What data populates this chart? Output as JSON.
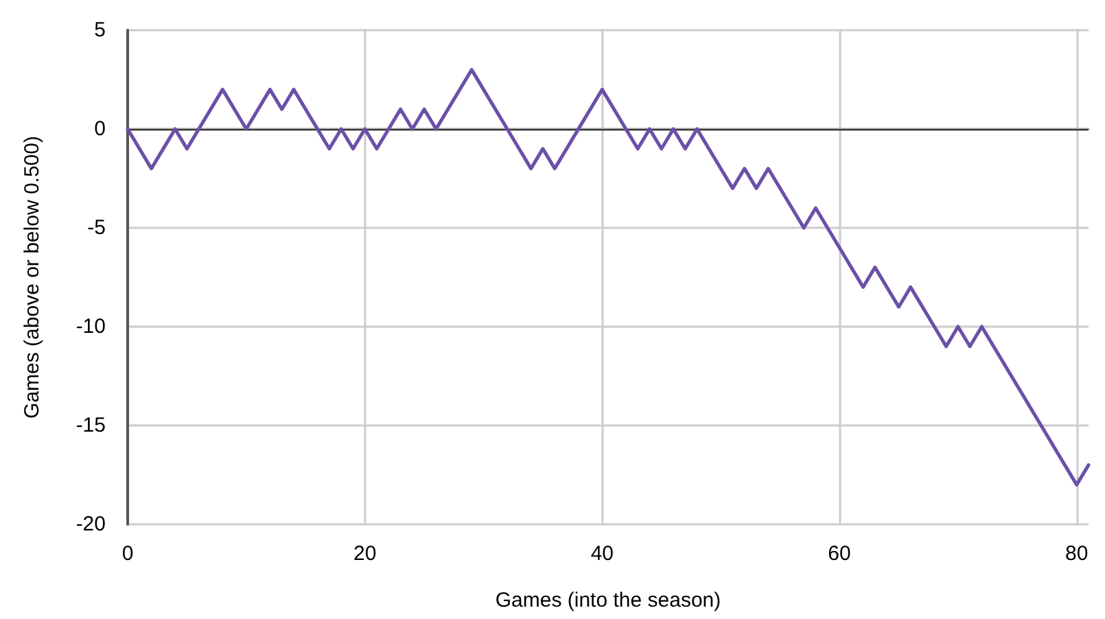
{
  "chart_data": {
    "type": "line",
    "xlabel": "Games (into the season)",
    "ylabel": "Games (above or below 0.500)",
    "x": [
      0,
      2,
      4,
      5,
      8,
      10,
      12,
      13,
      14,
      17,
      18,
      19,
      20,
      21,
      23,
      24,
      25,
      26,
      29,
      34,
      35,
      36,
      40,
      43,
      44,
      45,
      46,
      47,
      48,
      51,
      52,
      53,
      54,
      57,
      58,
      62,
      63,
      65,
      66,
      69,
      70,
      71,
      72,
      80,
      81
    ],
    "series": [
      {
        "color": "#6a50a7",
        "values": [
          0,
          -2,
          0,
          -1,
          2,
          0,
          2,
          1,
          2,
          -1,
          0,
          -1,
          0,
          -1,
          1,
          0,
          1,
          0,
          3,
          -2,
          -1,
          -2,
          2,
          -1,
          0,
          -1,
          0,
          -1,
          0,
          -3,
          -2,
          -3,
          -2,
          -5,
          -4,
          -8,
          -7,
          -9,
          -8,
          -11,
          -10,
          -11,
          -10,
          -18,
          -17
        ]
      }
    ],
    "xlim": [
      0,
      81
    ],
    "xticks": [
      0,
      20,
      40,
      60,
      80
    ],
    "ylim": [
      -20,
      5
    ],
    "yticks": [
      -20,
      -15,
      -10,
      -5,
      0,
      5
    ],
    "ref_lines": [
      {
        "axis": "y",
        "value": 0,
        "color": "#333333"
      }
    ],
    "grid": true,
    "marker": "none",
    "line_style": "solid"
  }
}
